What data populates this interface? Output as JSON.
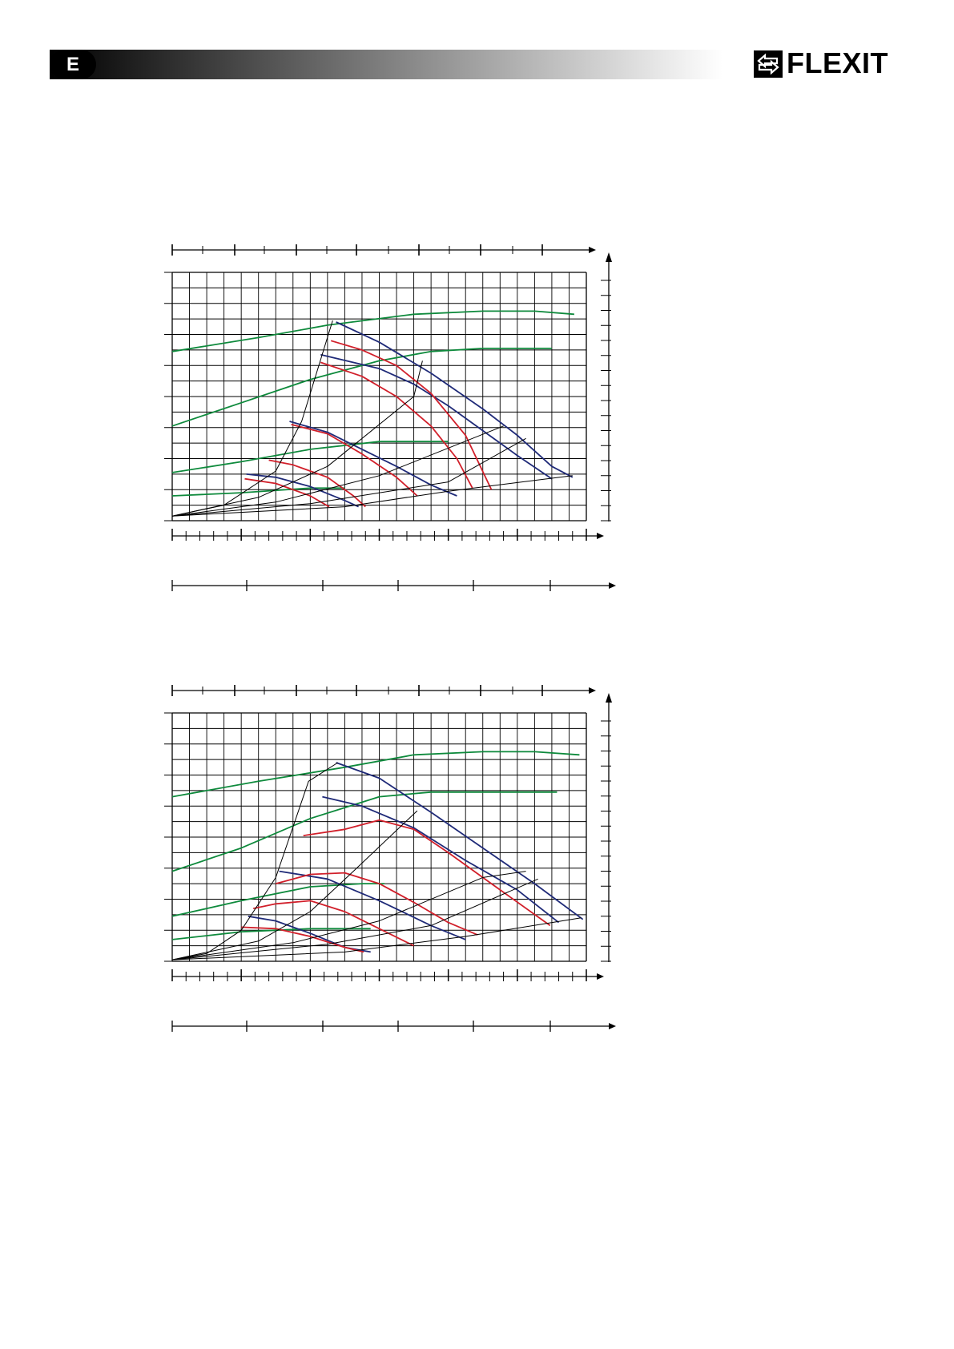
{
  "header": {
    "language_code": "E",
    "brand": "FLEXIT",
    "brand_mark_icon": "arrows-exchange-icon",
    "gradient_from": "#000000",
    "gradient_to": "#ffffff"
  },
  "chart_data": [
    {
      "type": "line",
      "title": "",
      "xlabel": "",
      "ylabel": "",
      "grid": true,
      "xlim": [
        0,
        24
      ],
      "ylim": [
        0,
        16
      ],
      "colors": {
        "blue": "#1f2a78",
        "red": "#d11f2a",
        "green": "#0e8a3c",
        "black": "#000000"
      },
      "series": [
        {
          "color": "green",
          "points": [
            [
              0,
              10.9
            ],
            [
              5,
              11.8
            ],
            [
              9,
              12.6
            ],
            [
              14,
              13.3
            ],
            [
              18,
              13.5
            ],
            [
              21,
              13.5
            ],
            [
              23.3,
              13.3
            ]
          ]
        },
        {
          "color": "green",
          "points": [
            [
              0,
              6.1
            ],
            [
              4,
              7.6
            ],
            [
              8,
              9.1
            ],
            [
              12,
              10.3
            ],
            [
              15,
              10.9
            ],
            [
              18,
              11.1
            ],
            [
              22,
              11.1
            ]
          ]
        },
        {
          "color": "green",
          "points": [
            [
              0,
              3.1
            ],
            [
              4,
              3.8
            ],
            [
              8,
              4.6
            ],
            [
              12,
              5.1
            ],
            [
              14,
              5.1
            ],
            [
              16,
              5.1
            ]
          ]
        },
        {
          "color": "green",
          "points": [
            [
              0,
              1.6
            ],
            [
              4,
              1.8
            ],
            [
              8,
              2.1
            ],
            [
              10,
              2.1
            ]
          ]
        },
        {
          "color": "blue",
          "points": [
            [
              9.5,
              12.8
            ],
            [
              12,
              11.5
            ],
            [
              15,
              9.5
            ],
            [
              18,
              7.2
            ],
            [
              20,
              5.5
            ],
            [
              22,
              3.5
            ],
            [
              23.2,
              2.8
            ]
          ]
        },
        {
          "color": "blue",
          "points": [
            [
              8.6,
              10.7
            ],
            [
              12,
              9.8
            ],
            [
              14,
              8.8
            ],
            [
              16,
              7.4
            ],
            [
              18,
              5.8
            ],
            [
              20,
              4.2
            ],
            [
              22,
              2.7
            ]
          ]
        },
        {
          "color": "blue",
          "points": [
            [
              6.8,
              6.4
            ],
            [
              9,
              5.7
            ],
            [
              11,
              4.6
            ],
            [
              13,
              3.5
            ],
            [
              15,
              2.3
            ],
            [
              16.5,
              1.6
            ]
          ]
        },
        {
          "color": "blue",
          "points": [
            [
              4.3,
              3.0
            ],
            [
              6,
              2.8
            ],
            [
              8,
              2.2
            ],
            [
              10,
              1.3
            ],
            [
              10.8,
              0.9
            ]
          ]
        },
        {
          "color": "red",
          "points": [
            [
              9.2,
              11.6
            ],
            [
              11,
              11.0
            ],
            [
              13,
              10.0
            ],
            [
              15,
              8.2
            ],
            [
              17,
              5.5
            ],
            [
              18.5,
              2.0
            ]
          ]
        },
        {
          "color": "red",
          "points": [
            [
              8.6,
              10.2
            ],
            [
              11,
              9.3
            ],
            [
              13,
              8.0
            ],
            [
              15,
              6.1
            ],
            [
              16.5,
              4.0
            ],
            [
              17.4,
              2.1
            ]
          ]
        },
        {
          "color": "red",
          "points": [
            [
              6.9,
              6.2
            ],
            [
              9,
              5.6
            ],
            [
              11,
              4.3
            ],
            [
              13,
              2.8
            ],
            [
              14.2,
              1.6
            ]
          ]
        },
        {
          "color": "red",
          "points": [
            [
              5.6,
              3.9
            ],
            [
              7,
              3.6
            ],
            [
              9,
              2.8
            ],
            [
              10.5,
              1.6
            ],
            [
              11.2,
              0.9
            ]
          ]
        },
        {
          "color": "red",
          "points": [
            [
              4.2,
              2.7
            ],
            [
              6,
              2.4
            ],
            [
              8,
              1.6
            ],
            [
              9.1,
              0.9
            ]
          ]
        },
        {
          "color": "black",
          "points": [
            [
              0,
              0.3
            ],
            [
              3,
              1.0
            ],
            [
              6,
              3.2
            ],
            [
              7.5,
              6.4
            ],
            [
              9.3,
              12.9
            ]
          ]
        },
        {
          "color": "black",
          "points": [
            [
              0,
              0.3
            ],
            [
              5,
              1.5
            ],
            [
              9,
              3.5
            ],
            [
              14,
              8.0
            ],
            [
              14.5,
              10.3
            ]
          ]
        },
        {
          "color": "black",
          "points": [
            [
              0,
              0.3
            ],
            [
              6,
              1.2
            ],
            [
              12,
              2.9
            ],
            [
              19.2,
              6.1
            ]
          ]
        },
        {
          "color": "black",
          "points": [
            [
              0,
              0.3
            ],
            [
              8,
              1.1
            ],
            [
              16,
              2.5
            ],
            [
              20.5,
              5.3
            ]
          ]
        },
        {
          "color": "black",
          "points": [
            [
              0,
              0.3
            ],
            [
              10,
              0.9
            ],
            [
              16,
              1.9
            ],
            [
              23.2,
              2.9
            ]
          ]
        }
      ]
    },
    {
      "type": "line",
      "title": "",
      "xlabel": "",
      "ylabel": "",
      "grid": true,
      "xlim": [
        0,
        24
      ],
      "ylim": [
        0,
        16
      ],
      "colors": {
        "blue": "#1f2a78",
        "red": "#d11f2a",
        "green": "#0e8a3c",
        "black": "#000000"
      },
      "series": [
        {
          "color": "green",
          "points": [
            [
              0,
              10.6
            ],
            [
              5,
              11.6
            ],
            [
              10,
              12.5
            ],
            [
              14,
              13.3
            ],
            [
              18,
              13.5
            ],
            [
              21,
              13.5
            ],
            [
              23.6,
              13.3
            ]
          ]
        },
        {
          "color": "green",
          "points": [
            [
              0,
              5.8
            ],
            [
              4,
              7.3
            ],
            [
              8,
              9.2
            ],
            [
              12,
              10.6
            ],
            [
              15,
              10.9
            ],
            [
              18,
              10.9
            ],
            [
              22.3,
              10.9
            ]
          ]
        },
        {
          "color": "green",
          "points": [
            [
              0,
              2.9
            ],
            [
              4,
              3.9
            ],
            [
              8,
              4.8
            ],
            [
              11,
              5.0
            ],
            [
              12.3,
              5.0
            ]
          ]
        },
        {
          "color": "green",
          "points": [
            [
              0,
              1.4
            ],
            [
              4,
              1.9
            ],
            [
              8,
              2.1
            ],
            [
              11.5,
              2.1
            ]
          ]
        },
        {
          "color": "blue",
          "points": [
            [
              9.5,
              12.8
            ],
            [
              12,
              11.8
            ],
            [
              15,
              9.6
            ],
            [
              18,
              7.3
            ],
            [
              21,
              5.0
            ],
            [
              23.8,
              2.7
            ]
          ]
        },
        {
          "color": "blue",
          "points": [
            [
              8.7,
              10.6
            ],
            [
              11,
              10.0
            ],
            [
              14,
              8.6
            ],
            [
              17,
              6.5
            ],
            [
              20,
              4.6
            ],
            [
              22.4,
              2.5
            ]
          ]
        },
        {
          "color": "blue",
          "points": [
            [
              6.2,
              5.8
            ],
            [
              9,
              5.3
            ],
            [
              12,
              3.9
            ],
            [
              15,
              2.3
            ],
            [
              17,
              1.4
            ]
          ]
        },
        {
          "color": "blue",
          "points": [
            [
              4.4,
              2.9
            ],
            [
              6,
              2.6
            ],
            [
              8,
              1.8
            ],
            [
              10,
              0.9
            ],
            [
              11.5,
              0.6
            ]
          ]
        },
        {
          "color": "red",
          "points": [
            [
              7.6,
              8.1
            ],
            [
              10,
              8.5
            ],
            [
              12,
              9.1
            ],
            [
              14,
              8.5
            ],
            [
              16,
              7.0
            ],
            [
              18.5,
              5.0
            ],
            [
              21.9,
              2.3
            ]
          ]
        },
        {
          "color": "red",
          "points": [
            [
              6,
              5.0
            ],
            [
              8,
              5.6
            ],
            [
              10,
              5.7
            ],
            [
              12,
              5.0
            ],
            [
              14,
              3.8
            ],
            [
              16,
              2.5
            ],
            [
              17.7,
              1.7
            ]
          ]
        },
        {
          "color": "red",
          "points": [
            [
              4.7,
              3.4
            ],
            [
              6,
              3.7
            ],
            [
              8,
              3.9
            ],
            [
              10,
              3.2
            ],
            [
              12,
              2.1
            ],
            [
              14,
              1.0
            ]
          ]
        },
        {
          "color": "red",
          "points": [
            [
              4.0,
              2.2
            ],
            [
              6,
              2.1
            ],
            [
              8,
              1.6
            ],
            [
              10,
              0.9
            ],
            [
              11.1,
              0.6
            ]
          ]
        },
        {
          "color": "black",
          "points": [
            [
              0,
              0.1
            ],
            [
              2,
              0.5
            ],
            [
              4,
              2.0
            ],
            [
              6,
              5.4
            ],
            [
              7.9,
              11.6
            ],
            [
              9.6,
              12.8
            ]
          ]
        },
        {
          "color": "black",
          "points": [
            [
              0,
              0.1
            ],
            [
              5,
              1.3
            ],
            [
              8,
              3.2
            ],
            [
              10.5,
              5.8
            ],
            [
              14.2,
              9.7
            ]
          ]
        },
        {
          "color": "black",
          "points": [
            [
              0,
              0.1
            ],
            [
              7,
              1.2
            ],
            [
              12,
              2.6
            ],
            [
              18,
              5.4
            ],
            [
              20.5,
              5.8
            ]
          ]
        },
        {
          "color": "black",
          "points": [
            [
              0,
              0.1
            ],
            [
              9,
              1.1
            ],
            [
              15,
              2.3
            ],
            [
              21.2,
              5.3
            ]
          ]
        },
        {
          "color": "black",
          "points": [
            [
              0,
              0.1
            ],
            [
              10,
              0.6
            ],
            [
              17,
              1.6
            ],
            [
              23.7,
              2.8
            ]
          ]
        }
      ]
    }
  ]
}
